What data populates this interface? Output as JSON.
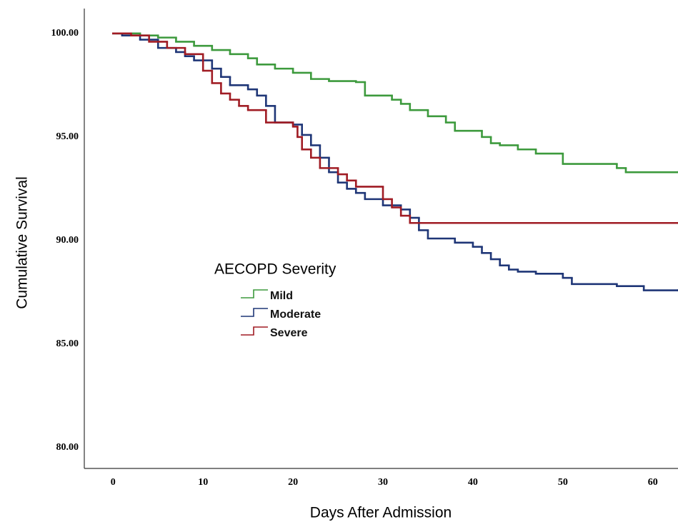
{
  "chart_data": {
    "type": "step",
    "x_label": "Days After Admission",
    "y_label": "Cumulative Survival",
    "legend_title": "AECOPD Severity",
    "legend_position": "center-left",
    "grid": false,
    "xlim": [
      -3.2,
      62.8
    ],
    "ylim": [
      79,
      101.2
    ],
    "xticks": [
      0,
      10,
      20,
      30,
      40,
      50,
      60
    ],
    "yticks": [
      {
        "value": 80,
        "label": "80.00"
      },
      {
        "value": 85,
        "label": "85.00"
      },
      {
        "value": 90,
        "label": "90.00"
      },
      {
        "value": 95,
        "label": "95.00"
      },
      {
        "value": 100,
        "label": "100.00"
      }
    ],
    "series": [
      {
        "name": "Mild",
        "color": "#3d9a3d",
        "x": [
          0,
          3,
          5,
          7,
          9,
          11,
          13,
          15,
          16,
          18,
          20,
          22,
          24,
          27,
          28,
          31,
          32,
          33,
          35,
          37,
          38,
          41,
          42,
          43,
          45,
          47,
          50,
          56,
          57,
          62.8
        ],
        "values": [
          100,
          99.9,
          99.8,
          99.6,
          99.4,
          99.2,
          99.0,
          98.8,
          98.5,
          98.3,
          98.1,
          97.8,
          97.7,
          97.65,
          97.0,
          96.8,
          96.6,
          96.3,
          96.0,
          95.7,
          95.3,
          95.0,
          94.7,
          94.6,
          94.4,
          94.2,
          93.7,
          93.5,
          93.3,
          93.3
        ]
      },
      {
        "name": "Moderate",
        "color": "#1f3677",
        "x": [
          0,
          1,
          3,
          5,
          7,
          8,
          9,
          11,
          12,
          13,
          15,
          16,
          17,
          18,
          20,
          21,
          22,
          23,
          24,
          25,
          26,
          27,
          28,
          30,
          32,
          33,
          34,
          35,
          38,
          40,
          41,
          42,
          43,
          44,
          45,
          47,
          50,
          51,
          56,
          59,
          62.8
        ],
        "values": [
          100,
          99.9,
          99.7,
          99.3,
          99.1,
          98.9,
          98.7,
          98.3,
          97.9,
          97.5,
          97.3,
          97.0,
          96.5,
          95.7,
          95.6,
          95.1,
          94.6,
          94.0,
          93.3,
          92.8,
          92.5,
          92.3,
          92.0,
          91.7,
          91.5,
          91.1,
          90.5,
          90.1,
          89.9,
          89.7,
          89.4,
          89.1,
          88.8,
          88.6,
          88.5,
          88.4,
          88.2,
          87.9,
          87.8,
          87.6,
          87.6
        ]
      },
      {
        "name": "Severe",
        "color": "#a01c24",
        "x": [
          0,
          2,
          4,
          6,
          8,
          10,
          11,
          12,
          13,
          14,
          15,
          17,
          20,
          20.5,
          21,
          22,
          23,
          25,
          26,
          27,
          30,
          31,
          32,
          33,
          62.8
        ],
        "values": [
          100,
          99.9,
          99.6,
          99.3,
          99.0,
          98.2,
          97.6,
          97.1,
          96.8,
          96.5,
          96.3,
          95.7,
          95.5,
          95.0,
          94.4,
          94.0,
          93.5,
          93.2,
          92.9,
          92.6,
          92.0,
          91.6,
          91.2,
          90.85,
          90.85
        ]
      }
    ]
  }
}
